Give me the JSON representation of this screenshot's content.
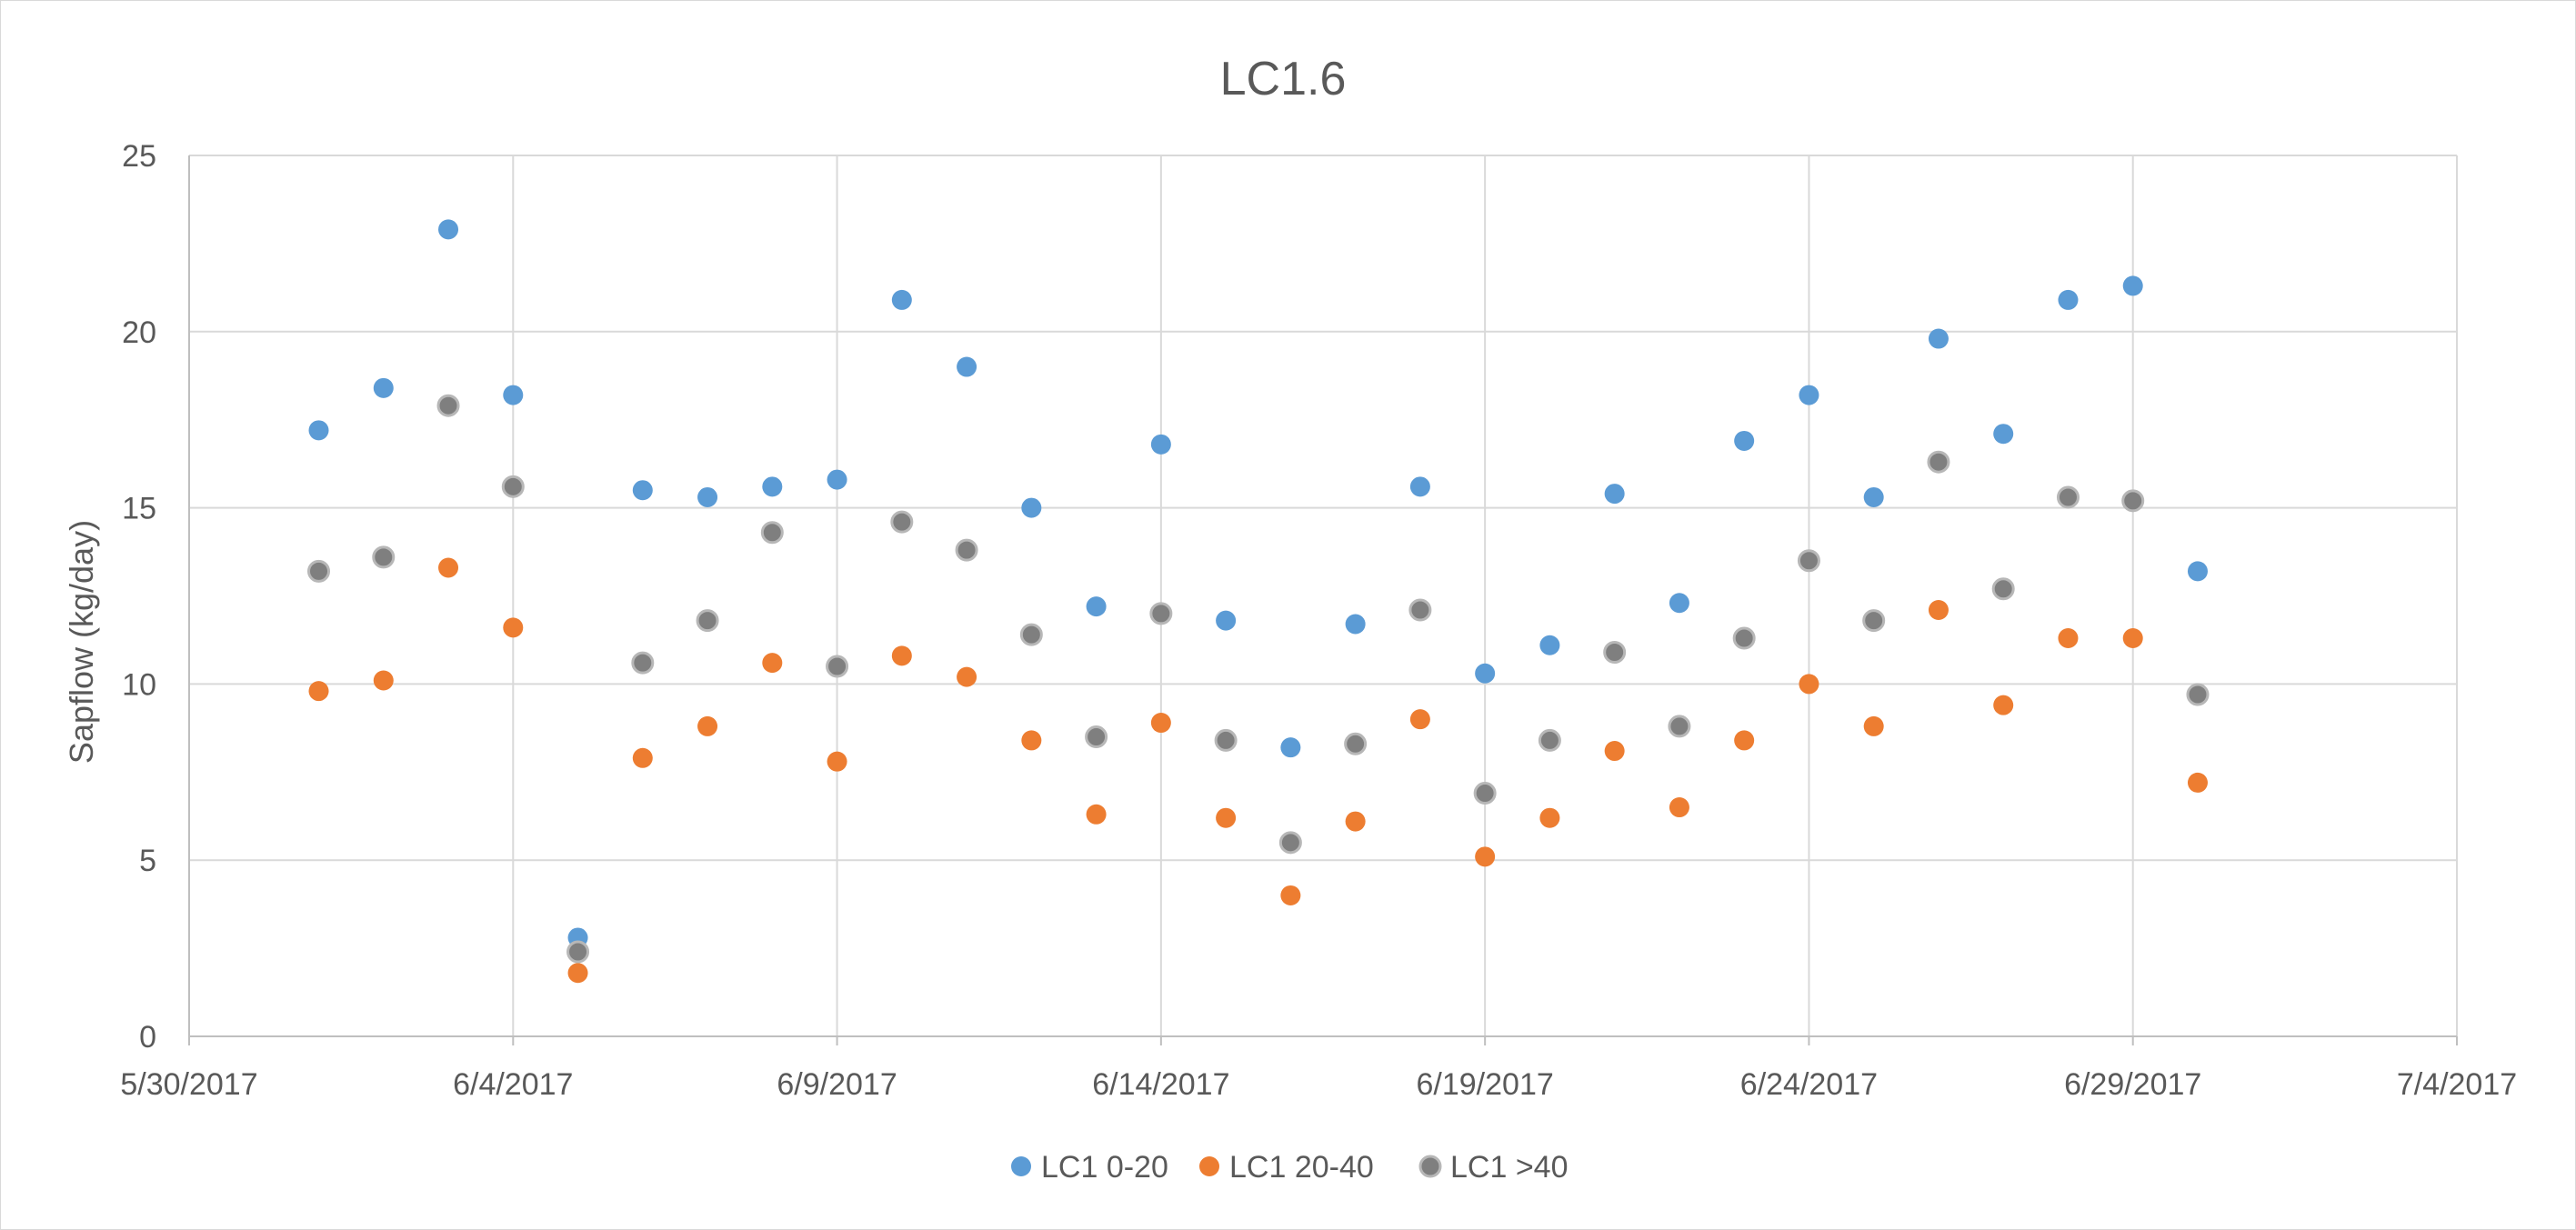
{
  "chart_data": {
    "type": "scatter",
    "title": "LC1.6",
    "xlabel": "",
    "ylabel": "Sapflow (kg/day)",
    "xlim": [
      "2017-05-30",
      "2017-07-04"
    ],
    "ylim": [
      0,
      25
    ],
    "x_tick_labels": [
      "5/30/2017",
      "6/4/2017",
      "6/9/2017",
      "6/14/2017",
      "6/19/2017",
      "6/24/2017",
      "6/29/2017",
      "7/4/2017"
    ],
    "y_tick_labels": [
      "0",
      "5",
      "10",
      "15",
      "20",
      "25"
    ],
    "grid": true,
    "legend_position": "bottom",
    "x": [
      "2017-06-01",
      "2017-06-02",
      "2017-06-03",
      "2017-06-04",
      "2017-06-05",
      "2017-06-06",
      "2017-06-07",
      "2017-06-08",
      "2017-06-09",
      "2017-06-10",
      "2017-06-11",
      "2017-06-12",
      "2017-06-13",
      "2017-06-14",
      "2017-06-15",
      "2017-06-16",
      "2017-06-17",
      "2017-06-18",
      "2017-06-19",
      "2017-06-20",
      "2017-06-21",
      "2017-06-22",
      "2017-06-23",
      "2017-06-24",
      "2017-06-25",
      "2017-06-26",
      "2017-06-27",
      "2017-06-28",
      "2017-06-29",
      "2017-06-30"
    ],
    "series": [
      {
        "name": "LC1 0-20",
        "color": "#5b9bd5",
        "values": [
          17.2,
          18.4,
          22.9,
          18.2,
          2.8,
          15.5,
          15.3,
          15.6,
          15.8,
          20.9,
          19.0,
          15.0,
          12.2,
          16.8,
          11.8,
          8.2,
          11.7,
          15.6,
          10.3,
          11.1,
          15.4,
          12.3,
          16.9,
          18.2,
          15.3,
          19.8,
          17.1,
          20.9,
          21.3,
          13.2
        ]
      },
      {
        "name": "LC1 20-40",
        "color": "#ed7d31",
        "values": [
          9.8,
          10.1,
          13.3,
          11.6,
          1.8,
          7.9,
          8.8,
          10.6,
          7.8,
          10.8,
          10.2,
          8.4,
          6.3,
          8.9,
          6.2,
          4.0,
          6.1,
          9.0,
          5.1,
          6.2,
          8.1,
          6.5,
          8.4,
          10.0,
          8.8,
          12.1,
          9.4,
          11.3,
          11.3,
          7.2
        ]
      },
      {
        "name": "LC1 >40",
        "color": "#7f7f7f",
        "values": [
          13.2,
          13.6,
          17.9,
          15.6,
          2.4,
          10.6,
          11.8,
          14.3,
          10.5,
          14.6,
          13.8,
          11.4,
          8.5,
          12.0,
          8.4,
          5.5,
          8.3,
          12.1,
          6.9,
          8.4,
          10.9,
          8.8,
          11.3,
          13.5,
          11.8,
          16.3,
          12.7,
          15.3,
          15.2,
          9.7
        ]
      }
    ]
  }
}
